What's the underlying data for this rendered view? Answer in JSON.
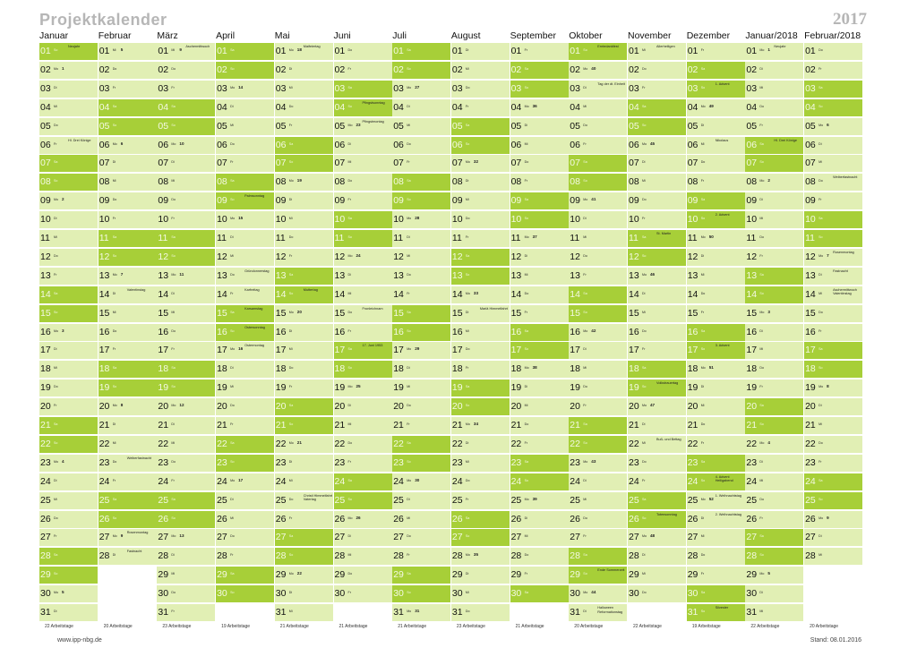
{
  "header": {
    "title": "Projektkalender",
    "year": "2017"
  },
  "footer": {
    "url": "www.ipp-nbg.de",
    "stand": "Stand: 08.01.2016"
  },
  "colors": {
    "workday": "#e1efb4",
    "weekend": "#a7cf38",
    "title": "#b6b6b6"
  },
  "months": [
    {
      "name": "Januar",
      "start": 0,
      "days": 31,
      "summary": "22 Arbeitstage",
      "kw": {
        "2": "1",
        "9": "2",
        "16": "3",
        "23": "4",
        "30": "5"
      },
      "events": {
        "1": "Neujahr",
        "6": "Hl. Drei Könige"
      }
    },
    {
      "name": "Februar",
      "start": 3,
      "days": 28,
      "summary": "20 Arbeitstage",
      "kw": {
        "1": "5",
        "6": "6",
        "13": "7",
        "20": "8",
        "27": "9"
      },
      "events": {
        "14": "Valentinstag",
        "23": "Weiberfastnacht",
        "27": "Rosenmontag",
        "28": "Fastnacht"
      }
    },
    {
      "name": "März",
      "start": 3,
      "days": 31,
      "summary": "23 Arbeitstage",
      "kw": {
        "1": "9",
        "6": "10",
        "13": "11",
        "20": "12",
        "27": "13"
      },
      "events": {
        "1": "Aschermittwoch"
      }
    },
    {
      "name": "April",
      "start": 6,
      "days": 30,
      "summary": "19 Arbeitstage",
      "kw": {
        "3": "14",
        "10": "15",
        "17": "16",
        "24": "17"
      },
      "events": {
        "9": "Palmsonntag",
        "13": "Gründonnerstag",
        "14": "Karfreitag",
        "15": "Karsamstag",
        "16": "Ostersonntag",
        "17": "Ostermontag"
      }
    },
    {
      "name": "Mai",
      "start": 1,
      "days": 31,
      "summary": "21 Arbeitstage",
      "kw": {
        "1": "18",
        "8": "19",
        "15": "20",
        "22": "21",
        "29": "22"
      },
      "events": {
        "1": "Maifeiertag",
        "14": "Muttertag",
        "25": "Christi Himmelfahrt Vatertag"
      }
    },
    {
      "name": "Juni",
      "start": 4,
      "days": 30,
      "summary": "21 Arbeitstage",
      "kw": {
        "5": "23",
        "12": "24",
        "19": "25",
        "26": "26"
      },
      "events": {
        "4": "Pfingstsonntag",
        "5": "Pfingstmontag",
        "15": "Fronleichnam",
        "17": "17. Juni 1953"
      }
    },
    {
      "name": "Juli",
      "start": 6,
      "days": 31,
      "summary": "21 Arbeitstage",
      "kw": {
        "3": "27",
        "10": "28",
        "17": "29",
        "24": "30",
        "31": "31"
      },
      "events": {}
    },
    {
      "name": "August",
      "start": 2,
      "days": 31,
      "summary": "23 Arbeitstage",
      "kw": {
        "7": "32",
        "14": "33",
        "21": "34",
        "28": "35"
      },
      "events": {
        "15": "Mariä Himmelfahrt"
      }
    },
    {
      "name": "September",
      "start": 5,
      "days": 30,
      "summary": "21 Arbeitstage",
      "kw": {
        "4": "36",
        "11": "37",
        "18": "38",
        "25": "39"
      },
      "events": {}
    },
    {
      "name": "Oktober",
      "start": 0,
      "days": 31,
      "summary": "20 Arbeitstage",
      "kw": {
        "2": "40",
        "9": "41",
        "16": "42",
        "23": "43",
        "30": "44"
      },
      "events": {
        "1": "Erntedankfest",
        "3": "Tag der dt. Einheit",
        "29": "Ende Sommerzeit",
        "31": "Halloween Reformationstag"
      }
    },
    {
      "name": "November",
      "start": 3,
      "days": 30,
      "summary": "22 Arbeitstage",
      "kw": {
        "6": "45",
        "13": "46",
        "20": "47",
        "27": "48"
      },
      "events": {
        "1": "Allerheiligen",
        "11": "St. Martin",
        "19": "Volkstrauertag",
        "22": "Buß- und Bettag",
        "26": "Totensonntag"
      }
    },
    {
      "name": "Dezember",
      "start": 5,
      "days": 31,
      "summary": "19 Arbeitstage",
      "kw": {
        "4": "49",
        "11": "50",
        "18": "51",
        "25": "52"
      },
      "events": {
        "3": "1. Advent",
        "6": "Nikolaus",
        "10": "2. Advent",
        "17": "3. Advent",
        "24": "4. Advent Heiligabend",
        "25": "1. Weihnachtstag",
        "26": "2. Weihnachtstag",
        "31": "Silvester"
      }
    },
    {
      "name": "Januar/2018",
      "start": 1,
      "days": 31,
      "summary": "22 Arbeitstage",
      "kw": {
        "1": "1",
        "8": "2",
        "15": "3",
        "22": "4",
        "29": "5"
      },
      "events": {
        "1": "Neujahr",
        "6": "Hl. Drei Könige"
      }
    },
    {
      "name": "Februar/2018",
      "start": 4,
      "days": 28,
      "summary": "20 Arbeitstage",
      "kw": {
        "5": "6",
        "12": "7",
        "19": "8",
        "26": "9"
      },
      "events": {
        "8": "Weiberfastnacht",
        "12": "Rosenmontag",
        "13": "Fastnacht",
        "14": "Aschermittwoch Valentinstag"
      }
    }
  ],
  "weekdays": [
    "So",
    "Mo",
    "Di",
    "Mi",
    "Do",
    "Fr",
    "Sa"
  ]
}
